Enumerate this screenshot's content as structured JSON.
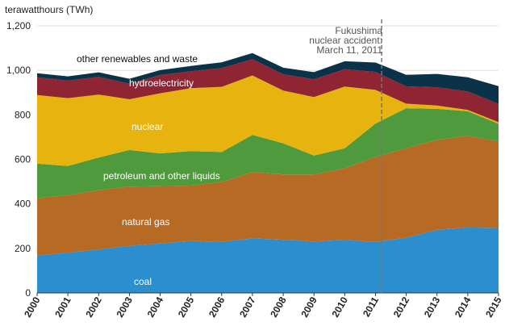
{
  "chart_data": {
    "type": "area",
    "stacked": true,
    "title": "",
    "ylabel": "terawatthours (TWh)",
    "xlabel": "",
    "ylim": [
      0,
      1200
    ],
    "yticks": [
      "0",
      "200",
      "400",
      "600",
      "800",
      "1,000",
      "1,200"
    ],
    "x": [
      "2000",
      "2001",
      "2002",
      "2003",
      "2004",
      "2005",
      "2006",
      "2007",
      "2008",
      "2009",
      "2010",
      "2011",
      "2012",
      "2013",
      "2014",
      "2015"
    ],
    "series": [
      {
        "name": "coal",
        "color": "#2b8fcf",
        "values": [
          168,
          181,
          195,
          211,
          222,
          234,
          229,
          245,
          239,
          231,
          238,
          229,
          248,
          283,
          294,
          292
        ]
      },
      {
        "name": "natural gas",
        "color": "#b66a24",
        "values": [
          258,
          258,
          266,
          267,
          258,
          248,
          269,
          298,
          293,
          301,
          322,
          382,
          402,
          404,
          412,
          388
        ]
      },
      {
        "name": "petroleum and other liquids",
        "color": "#4e9a3c",
        "values": [
          155,
          131,
          147,
          164,
          147,
          155,
          135,
          167,
          140,
          85,
          90,
          150,
          180,
          140,
          110,
          80
        ]
      },
      {
        "name": "nuclear",
        "color": "#e6b30f",
        "values": [
          308,
          305,
          283,
          228,
          270,
          283,
          293,
          267,
          237,
          263,
          277,
          151,
          20,
          15,
          6,
          7
        ]
      },
      {
        "name": "hydroelectricity",
        "color": "#8f2432",
        "values": [
          80,
          79,
          80,
          70,
          82,
          76,
          84,
          73,
          73,
          80,
          78,
          81,
          78,
          82,
          83,
          82
        ]
      },
      {
        "name": "other renewables  and waste",
        "color": "#0a3349",
        "values": [
          18,
          19,
          20,
          22,
          22,
          24,
          26,
          28,
          30,
          32,
          36,
          42,
          52,
          60,
          64,
          80
        ]
      }
    ],
    "annotation": {
      "lines": [
        "Fukushima",
        "nuclear accident:",
        "March 11, 2011"
      ],
      "x": 2011.2
    }
  },
  "colors": {
    "annotation_line": "#777777",
    "axis": "#333333",
    "grid": "#dddddd"
  }
}
